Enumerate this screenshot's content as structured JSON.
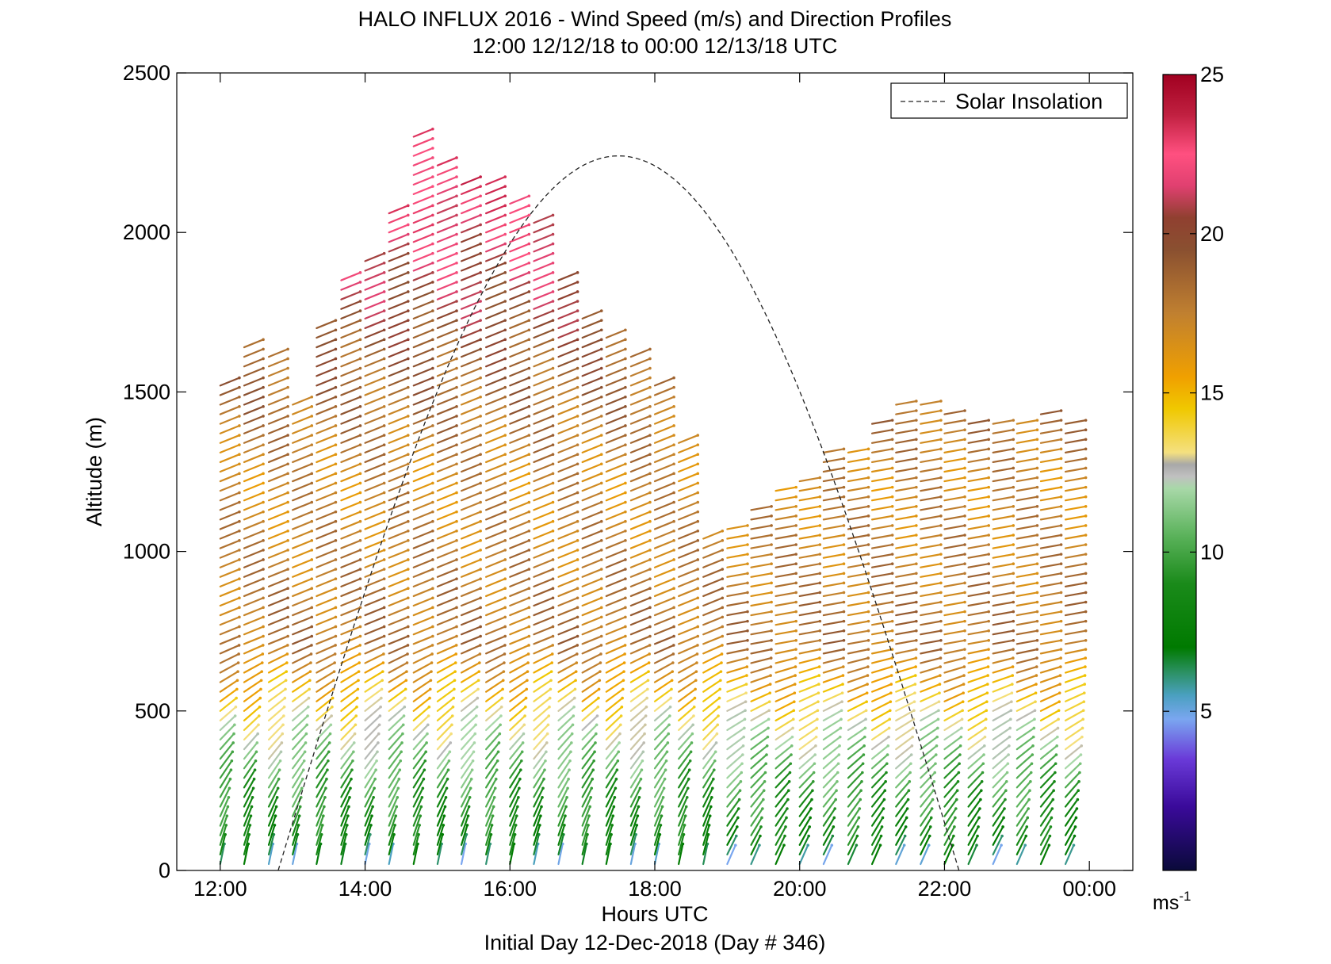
{
  "chart_data": {
    "type": "wind-barb-profile",
    "title": "HALO INFLUX 2016 - Wind Speed (m/s) and Direction Profiles",
    "subtitle": "12:00 12/12/18 to 00:00 12/13/18  UTC",
    "xlabel": "Hours UTC",
    "ylabel": "Altitude (m)",
    "caption": "Initial Day 12-Dec-2018 (Day # 346)",
    "xlim": [
      11.4,
      24.6
    ],
    "ylim": [
      0,
      2500
    ],
    "x_ticks": [
      {
        "value": 12,
        "label": "12:00"
      },
      {
        "value": 14,
        "label": "14:00"
      },
      {
        "value": 16,
        "label": "16:00"
      },
      {
        "value": 18,
        "label": "18:00"
      },
      {
        "value": 20,
        "label": "20:00"
      },
      {
        "value": 22,
        "label": "22:00"
      },
      {
        "value": 24,
        "label": "00:00"
      }
    ],
    "y_ticks": [
      {
        "value": 0,
        "label": "0"
      },
      {
        "value": 500,
        "label": "500"
      },
      {
        "value": 1000,
        "label": "1000"
      },
      {
        "value": 1500,
        "label": "1500"
      },
      {
        "value": 2000,
        "label": "2000"
      },
      {
        "value": 2500,
        "label": "2500"
      }
    ],
    "legend": {
      "entries": [
        "Solar Insolation"
      ],
      "placement": "top-right"
    },
    "colorbar": {
      "range": [
        0,
        25
      ],
      "unit_text": "ms",
      "unit_exp": "-1",
      "ticks": [
        {
          "value": 5,
          "label": "5"
        },
        {
          "value": 10,
          "label": "10"
        },
        {
          "value": 15,
          "label": "15"
        },
        {
          "value": 20,
          "label": "20"
        },
        {
          "value": 25,
          "label": "25"
        }
      ]
    },
    "solar_insolation": {
      "style": "dashed",
      "color": "#000000",
      "sunrise_hour": 12.8,
      "sunset_hour": 22.2,
      "peak_hour": 17.5,
      "peak_altitude_m": 2240
    },
    "profiles": {
      "time_hours": [
        12.0,
        12.33,
        12.67,
        13.0,
        13.33,
        13.67,
        14.0,
        14.33,
        14.67,
        15.0,
        15.33,
        15.67,
        16.0,
        16.33,
        16.67,
        17.0,
        17.33,
        17.67,
        18.0,
        18.33,
        18.67,
        19.0,
        19.33,
        19.67,
        20.0,
        20.33,
        20.67,
        21.0,
        21.33,
        21.67,
        22.0,
        22.33,
        22.67,
        23.0,
        23.33,
        23.67
      ],
      "top_altitude_m": [
        1530,
        1640,
        1610,
        1480,
        1720,
        1860,
        1930,
        2070,
        2320,
        2230,
        2150,
        2160,
        2110,
        2030,
        1850,
        1750,
        1680,
        1610,
        1520,
        1360,
        1050,
        1080,
        1150,
        1200,
        1220,
        1320,
        1330,
        1410,
        1470,
        1480,
        1440,
        1410,
        1400,
        1400,
        1450,
        1410
      ],
      "gate_spacing_m": 30,
      "speed_anchors_ms": [
        {
          "altitude_m": 0,
          "speed": 5
        },
        {
          "altitude_m": 60,
          "speed": 8
        },
        {
          "altitude_m": 250,
          "speed": 10
        },
        {
          "altitude_m": 450,
          "speed": 13
        },
        {
          "altitude_m": 700,
          "speed": 18
        },
        {
          "altitude_m": 1200,
          "speed": 17
        },
        {
          "altitude_m": 1600,
          "speed": 19
        },
        {
          "altitude_m": 2000,
          "speed": 22
        },
        {
          "altitude_m": 2300,
          "speed": 24
        }
      ]
    }
  }
}
